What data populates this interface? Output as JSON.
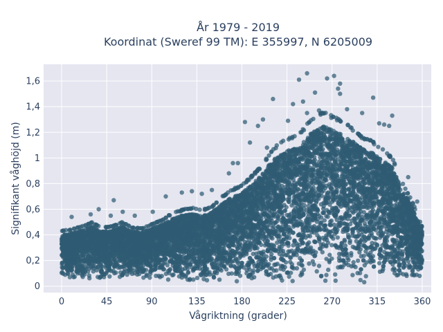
{
  "chart_data": {
    "type": "scatter",
    "title_lines": [
      "År 1979 - 2019",
      "Koordinat (Sweref 99 TM): E 355997, N 6205009"
    ],
    "xlabel": "Vågriktning (grader)",
    "ylabel": "Signifikant våghöjd (m)",
    "xlim": [
      -18,
      369
    ],
    "ylim": [
      -0.05,
      1.73
    ],
    "xticks": [
      0,
      45,
      90,
      135,
      180,
      225,
      270,
      315,
      360
    ],
    "xtick_labels": [
      "0",
      "45",
      "90",
      "135",
      "180",
      "225",
      "270",
      "315",
      "360"
    ],
    "yticks": [
      0,
      0.2,
      0.4,
      0.6,
      0.8,
      1.0,
      1.2,
      1.4,
      1.6
    ],
    "ytick_labels": [
      "0",
      "0,2",
      "0,4",
      "0,6",
      "0,8",
      "1",
      "1,2",
      "1,4",
      "1,6"
    ],
    "grid": true,
    "marker_color": "#2f5b73",
    "plot_background": "#e5e6f0",
    "envelope": {
      "direction": [
        0,
        10,
        20,
        30,
        40,
        50,
        60,
        70,
        80,
        90,
        100,
        110,
        120,
        130,
        140,
        150,
        160,
        170,
        180,
        190,
        200,
        210,
        220,
        230,
        240,
        250,
        260,
        270,
        280,
        290,
        300,
        310,
        320,
        330,
        340,
        350,
        360
      ],
      "min_height": [
        0.05,
        0.05,
        0.05,
        0.05,
        0.05,
        0.05,
        0.05,
        0.05,
        0.05,
        0.05,
        0.05,
        0.05,
        0.04,
        0.03,
        0.02,
        0.01,
        0.01,
        0.01,
        0.01,
        0.01,
        0.01,
        0.01,
        0.01,
        0.01,
        0.01,
        0.01,
        0.01,
        0.01,
        0.01,
        0.02,
        0.02,
        0.02,
        0.03,
        0.03,
        0.04,
        0.05,
        0.05
      ],
      "max_height": [
        0.52,
        0.53,
        0.56,
        0.6,
        0.55,
        0.56,
        0.6,
        0.55,
        0.54,
        0.58,
        0.62,
        0.68,
        0.72,
        0.74,
        0.72,
        0.76,
        0.85,
        0.92,
        0.96,
        1.05,
        1.15,
        1.3,
        1.38,
        1.42,
        1.48,
        1.6,
        1.66,
        1.62,
        1.58,
        1.5,
        1.42,
        1.38,
        1.3,
        1.22,
        0.98,
        0.8,
        0.55
      ]
    },
    "notable_points": [
      {
        "x": 245,
        "y": 1.66
      },
      {
        "x": 272,
        "y": 1.64
      },
      {
        "x": 265,
        "y": 1.62
      },
      {
        "x": 237,
        "y": 1.61
      },
      {
        "x": 278,
        "y": 1.58
      },
      {
        "x": 276,
        "y": 1.54
      },
      {
        "x": 253,
        "y": 1.51
      },
      {
        "x": 278,
        "y": 1.5
      },
      {
        "x": 311,
        "y": 1.47
      },
      {
        "x": 211,
        "y": 1.46
      },
      {
        "x": 241,
        "y": 1.44
      },
      {
        "x": 231,
        "y": 1.42
      },
      {
        "x": 285,
        "y": 1.38
      },
      {
        "x": 257,
        "y": 1.37
      },
      {
        "x": 245,
        "y": 1.35
      },
      {
        "x": 300,
        "y": 1.35
      },
      {
        "x": 330,
        "y": 1.33
      },
      {
        "x": 201,
        "y": 1.3
      },
      {
        "x": 226,
        "y": 1.29
      },
      {
        "x": 183,
        "y": 1.28
      },
      {
        "x": 317,
        "y": 1.27
      },
      {
        "x": 322,
        "y": 1.26
      },
      {
        "x": 327,
        "y": 1.25
      },
      {
        "x": 196,
        "y": 1.25
      },
      {
        "x": 188,
        "y": 1.12
      },
      {
        "x": 205,
        "y": 1.08
      },
      {
        "x": 176,
        "y": 0.96
      },
      {
        "x": 171,
        "y": 0.96
      },
      {
        "x": 346,
        "y": 0.85
      },
      {
        "x": 355,
        "y": 0.66
      },
      {
        "x": 346,
        "y": 0.68
      },
      {
        "x": 104,
        "y": 0.7
      },
      {
        "x": 120,
        "y": 0.73
      },
      {
        "x": 130,
        "y": 0.74
      },
      {
        "x": 140,
        "y": 0.72
      },
      {
        "x": 150,
        "y": 0.75
      },
      {
        "x": 52,
        "y": 0.67
      },
      {
        "x": 37,
        "y": 0.6
      },
      {
        "x": 61,
        "y": 0.58
      },
      {
        "x": 29,
        "y": 0.56
      },
      {
        "x": 10,
        "y": 0.54
      },
      {
        "x": 91,
        "y": 0.58
      },
      {
        "x": 49,
        "y": 0.55
      },
      {
        "x": 73,
        "y": 0.55
      },
      {
        "x": 167,
        "y": 0.88
      }
    ]
  }
}
